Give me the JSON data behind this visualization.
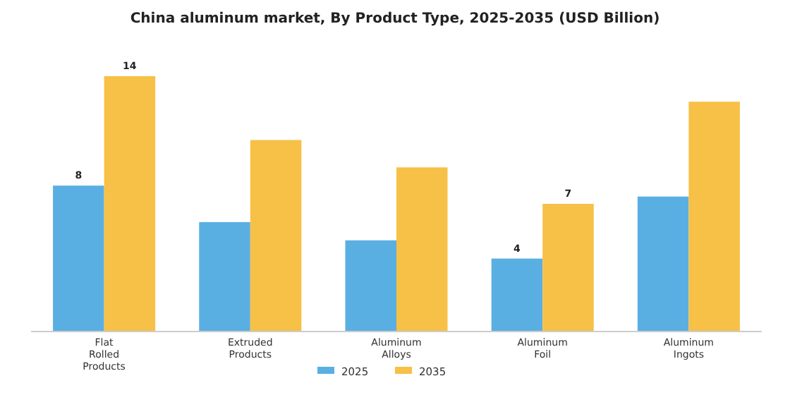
{
  "chart_data": {
    "type": "bar",
    "title": "China aluminum market, By Product Type, 2025-2035 (USD Billion)",
    "categories": [
      "Flat Rolled Products",
      "Extruded Products",
      "Aluminum Alloys",
      "Aluminum Foil",
      "Aluminum Ingots"
    ],
    "series": [
      {
        "name": "2025",
        "color": "#5aafe2",
        "values": [
          8,
          6,
          5,
          4,
          7.4
        ],
        "value_labels": [
          "8",
          null,
          null,
          "4",
          null
        ]
      },
      {
        "name": "2035",
        "color": "#f7c046",
        "values": [
          14,
          10.5,
          9,
          7,
          12.6
        ],
        "value_labels": [
          "14",
          null,
          null,
          "7",
          null
        ]
      }
    ],
    "legend": "bottom",
    "grid": false
  }
}
